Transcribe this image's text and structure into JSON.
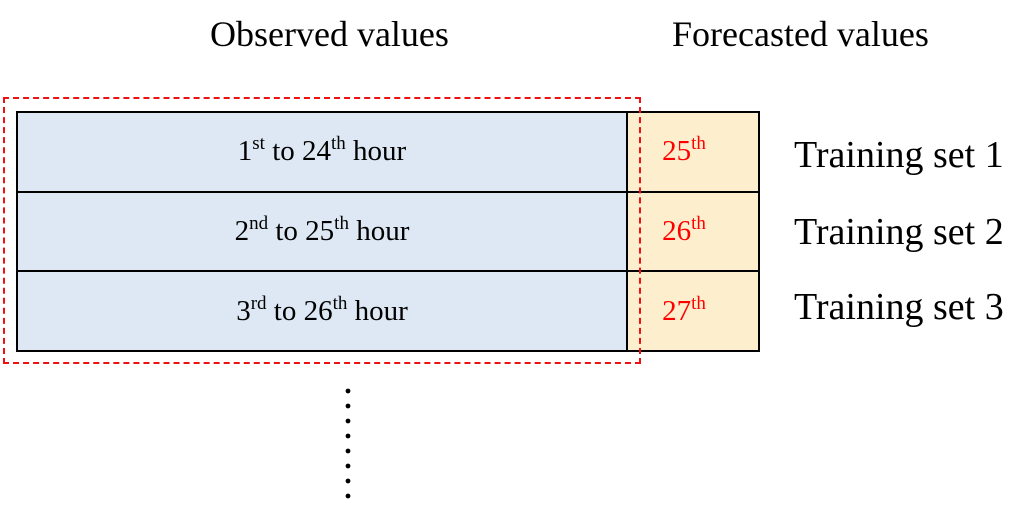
{
  "headers": {
    "observed": "Observed values",
    "forecast": "Forecasted values"
  },
  "rows": [
    {
      "observed": {
        "start_num": "1",
        "start_sup": "st",
        "mid": " to 24",
        "end_sup": "th",
        "tail": " hour"
      },
      "forecast": {
        "num": "25",
        "sup": "th"
      },
      "label": "Training set 1"
    },
    {
      "observed": {
        "start_num": "2",
        "start_sup": "nd",
        "mid": " to 25",
        "end_sup": "th",
        "tail": " hour"
      },
      "forecast": {
        "num": "26",
        "sup": "th"
      },
      "label": "Training set 2"
    },
    {
      "observed": {
        "start_num": "3",
        "start_sup": "rd",
        "mid": " to 26",
        "end_sup": "th",
        "tail": " hour"
      },
      "forecast": {
        "num": "27",
        "sup": "th"
      },
      "label": "Training set 3"
    }
  ],
  "colors": {
    "observed_fill": "#dde8f4",
    "forecast_fill": "#fdefce",
    "forecast_text": "#ff0000",
    "dashed_outline": "#ee1111"
  },
  "continuation": "vertical-ellipsis"
}
